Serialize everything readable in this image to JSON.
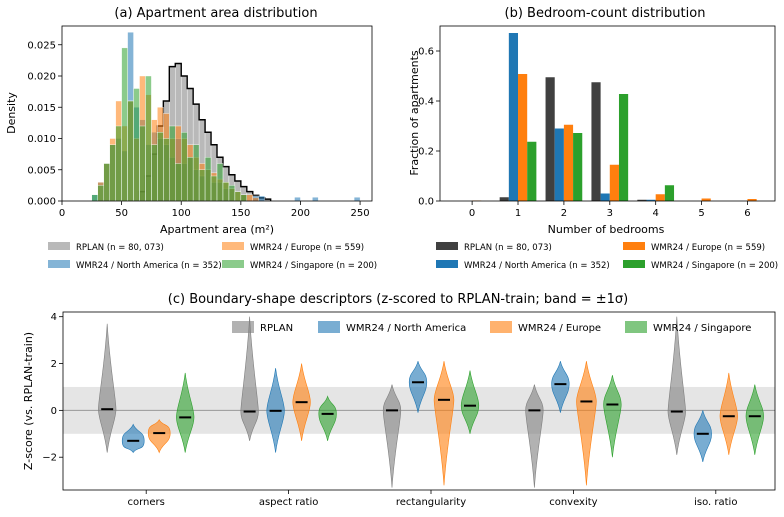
{
  "chart_data": [
    {
      "type": "histogram",
      "title": "(a) Apartment area distribution",
      "xlabel": "Apartment area (m²)",
      "ylabel": "Density",
      "xlim": [
        0,
        260
      ],
      "ylim": [
        0,
        0.028
      ],
      "xticks": [
        "0",
        "50",
        "100",
        "150",
        "200",
        "250"
      ],
      "yticks": [
        "0.000",
        "0.005",
        "0.010",
        "0.015",
        "0.020",
        "0.025"
      ],
      "bin_width": 5,
      "series": [
        {
          "name": "RPLAN (n = 80, 073)",
          "color": "#7f7f7f",
          "outlined": true,
          "bins": [
            [
              65,
              0.0015
            ],
            [
              70,
              0.004
            ],
            [
              75,
              0.0075
            ],
            [
              80,
              0.012
            ],
            [
              85,
              0.016
            ],
            [
              90,
              0.0215
            ],
            [
              95,
              0.022
            ],
            [
              100,
              0.02
            ],
            [
              105,
              0.018
            ],
            [
              110,
              0.0155
            ],
            [
              115,
              0.013
            ],
            [
              120,
              0.011
            ],
            [
              125,
              0.009
            ],
            [
              130,
              0.007
            ],
            [
              135,
              0.0055
            ],
            [
              140,
              0.0042
            ],
            [
              145,
              0.0032
            ],
            [
              150,
              0.0023
            ],
            [
              155,
              0.0015
            ],
            [
              160,
              0.0009
            ],
            [
              165,
              0.0005
            ],
            [
              170,
              0.0003
            ]
          ]
        },
        {
          "name": "WMR24 / North America (n = 352)",
          "color": "#1f77b4",
          "bins": [
            [
              25,
              0.001
            ],
            [
              30,
              0.003
            ],
            [
              35,
              0.006
            ],
            [
              40,
              0.009
            ],
            [
              45,
              0.01
            ],
            [
              50,
              0.008
            ],
            [
              55,
              0.027
            ],
            [
              60,
              0.015
            ],
            [
              65,
              0.013
            ],
            [
              70,
              0.009
            ],
            [
              75,
              0.011
            ],
            [
              80,
              0.01
            ],
            [
              85,
              0.009
            ],
            [
              90,
              0.007
            ],
            [
              95,
              0.01
            ],
            [
              100,
              0.006
            ],
            [
              105,
              0.007
            ],
            [
              110,
              0.005
            ],
            [
              115,
              0.004
            ],
            [
              120,
              0.005
            ],
            [
              125,
              0.003
            ],
            [
              130,
              0.003
            ],
            [
              135,
              0.002
            ],
            [
              140,
              0.002
            ],
            [
              150,
              0.001
            ],
            [
              160,
              0.0008
            ],
            [
              165,
              0.0008
            ],
            [
              195,
              0.0006
            ],
            [
              210,
              0.0006
            ],
            [
              245,
              0.0006
            ]
          ]
        },
        {
          "name": "WMR24 / Europe (n = 559)",
          "color": "#ff7f0e",
          "bins": [
            [
              30,
              0.003
            ],
            [
              35,
              0.006
            ],
            [
              40,
              0.01
            ],
            [
              45,
              0.016
            ],
            [
              50,
              0.012
            ],
            [
              55,
              0.016
            ],
            [
              60,
              0.01
            ],
            [
              65,
              0.02
            ],
            [
              70,
              0.017
            ],
            [
              75,
              0.013
            ],
            [
              80,
              0.015
            ],
            [
              85,
              0.014
            ],
            [
              90,
              0.01
            ],
            [
              95,
              0.012
            ],
            [
              100,
              0.01
            ],
            [
              105,
              0.009
            ],
            [
              110,
              0.007
            ],
            [
              115,
              0.006
            ],
            [
              120,
              0.005
            ],
            [
              125,
              0.0045
            ],
            [
              130,
              0.0035
            ],
            [
              135,
              0.003
            ],
            [
              140,
              0.002
            ],
            [
              145,
              0.0015
            ],
            [
              150,
              0.001
            ],
            [
              155,
              0.001
            ],
            [
              160,
              0.0005
            ]
          ]
        },
        {
          "name": "WMR24 / Singapore (n = 200)",
          "color": "#2ca02c",
          "bins": [
            [
              25,
              0.001
            ],
            [
              30,
              0.0025
            ],
            [
              35,
              0.006
            ],
            [
              40,
              0.009
            ],
            [
              45,
              0.012
            ],
            [
              50,
              0.0245
            ],
            [
              55,
              0.016
            ],
            [
              60,
              0.018
            ],
            [
              65,
              0.012
            ],
            [
              70,
              0.02
            ],
            [
              75,
              0.009
            ],
            [
              80,
              0.011
            ],
            [
              85,
              0.01
            ],
            [
              90,
              0.012
            ],
            [
              95,
              0.006
            ],
            [
              100,
              0.011
            ],
            [
              105,
              0.007
            ],
            [
              110,
              0.009
            ],
            [
              115,
              0.005
            ],
            [
              120,
              0.007
            ],
            [
              125,
              0.004
            ],
            [
              130,
              0.006
            ],
            [
              135,
              0.003
            ],
            [
              140,
              0.0025
            ],
            [
              145,
              0.0015
            ],
            [
              150,
              0.001
            ]
          ]
        }
      ]
    },
    {
      "type": "bar",
      "title": "(b) Bedroom-count distribution",
      "xlabel": "Number of bedrooms",
      "ylabel": "Fraction of apartments",
      "categories": [
        "0",
        "1",
        "2",
        "3",
        "4",
        "5",
        "6"
      ],
      "ylim": [
        0,
        0.7
      ],
      "yticks": [
        "0.0",
        "0.2",
        "0.4",
        "0.6"
      ],
      "series": [
        {
          "name": "RPLAN (n = 80, 073)",
          "color": "#404040",
          "values": [
            0.0,
            0.015,
            0.495,
            0.475,
            0.005,
            0.0,
            0.0
          ]
        },
        {
          "name": "WMR24 / North America (n = 352)",
          "color": "#1f77b4",
          "values": [
            0.0,
            0.672,
            0.29,
            0.03,
            0.005,
            0.0,
            0.0
          ]
        },
        {
          "name": "WMR24 / Europe (n = 559)",
          "color": "#ff7f0e",
          "values": [
            0.002,
            0.508,
            0.305,
            0.145,
            0.027,
            0.01,
            0.008
          ]
        },
        {
          "name": "WMR24 / Singapore (n = 200)",
          "color": "#2ca02c",
          "values": [
            0.0,
            0.237,
            0.272,
            0.428,
            0.063,
            0.0,
            0.0
          ]
        }
      ]
    },
    {
      "type": "violin",
      "title": "(c) Boundary-shape descriptors (z-scored to RPLAN-train; band = ±1σ)",
      "ylabel": "Z-score (vs. RPLAN-train)",
      "ylim": [
        -3.4,
        4.2
      ],
      "yticks": [
        "−2",
        "0",
        "2",
        "4"
      ],
      "band": [
        -1,
        1
      ],
      "categories": [
        "corners",
        "aspect ratio",
        "rectangularity",
        "convexity",
        "iso. ratio"
      ],
      "legend": [
        "RPLAN",
        "WMR24 / North America",
        "WMR24 / Europe",
        "WMR24 / Singapore"
      ],
      "colors": [
        "#7f7f7f",
        "#1f77b4",
        "#ff7f0e",
        "#2ca02c"
      ],
      "violins": [
        [
          {
            "min": -1.8,
            "max": 3.7,
            "mean": 0.05,
            "width": 0.8
          },
          {
            "min": -1.8,
            "max": -0.6,
            "mean": -1.3,
            "width": 1.0
          },
          {
            "min": -1.8,
            "max": -0.4,
            "mean": -0.97,
            "width": 1.0
          },
          {
            "min": -1.8,
            "max": 1.6,
            "mean": -0.3,
            "width": 0.8
          }
        ],
        [
          {
            "min": -1.3,
            "max": 4.0,
            "mean": -0.05,
            "width": 0.8
          },
          {
            "min": -1.8,
            "max": 1.8,
            "mean": -0.02,
            "width": 0.8
          },
          {
            "min": -1.3,
            "max": 2.0,
            "mean": 0.35,
            "width": 0.8
          },
          {
            "min": -1.3,
            "max": 0.6,
            "mean": -0.15,
            "width": 0.8
          }
        ],
        [
          {
            "min": -3.3,
            "max": 1.1,
            "mean": 0.0,
            "width": 0.8
          },
          {
            "min": -0.1,
            "max": 2.1,
            "mean": 1.2,
            "width": 0.8
          },
          {
            "min": -3.2,
            "max": 2.1,
            "mean": 0.45,
            "width": 0.9
          },
          {
            "min": -1.0,
            "max": 1.7,
            "mean": 0.2,
            "width": 0.8
          }
        ],
        [
          {
            "min": -3.3,
            "max": 1.1,
            "mean": 0.0,
            "width": 0.8
          },
          {
            "min": -0.1,
            "max": 2.1,
            "mean": 1.12,
            "width": 0.8
          },
          {
            "min": -3.2,
            "max": 2.1,
            "mean": 0.38,
            "width": 0.9
          },
          {
            "min": -2.0,
            "max": 1.5,
            "mean": 0.25,
            "width": 0.8
          }
        ],
        [
          {
            "min": -1.9,
            "max": 4.0,
            "mean": -0.05,
            "width": 0.8
          },
          {
            "min": -2.2,
            "max": 0.0,
            "mean": -1.0,
            "width": 0.8
          },
          {
            "min": -1.9,
            "max": 1.6,
            "mean": -0.25,
            "width": 0.8
          },
          {
            "min": -1.9,
            "max": 1.1,
            "mean": -0.25,
            "width": 0.8
          }
        ]
      ]
    }
  ]
}
